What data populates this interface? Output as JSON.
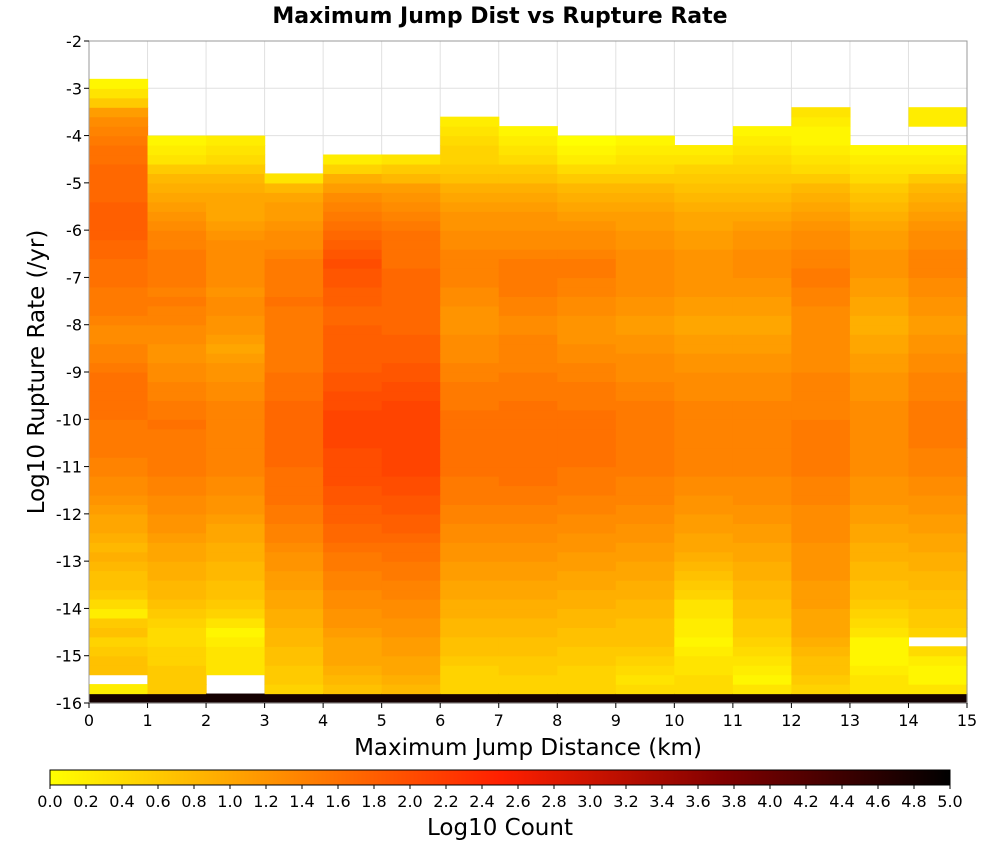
{
  "chart_data": {
    "type": "heatmap",
    "title": "Maximum Jump Dist vs Rupture Rate",
    "xlabel": "Maximum Jump Distance (km)",
    "ylabel": "Log10 Rupture Rate (/yr)",
    "colorbar_label": "Log10 Count",
    "xlim": [
      0,
      15
    ],
    "ylim": [
      -16,
      -2
    ],
    "clim": [
      0.0,
      5.0
    ],
    "x_ticks": [
      "0",
      "1",
      "2",
      "3",
      "4",
      "5",
      "6",
      "7",
      "8",
      "9",
      "10",
      "11",
      "12",
      "13",
      "14",
      "15"
    ],
    "y_ticks": [
      "-2",
      "-3",
      "-4",
      "-5",
      "-6",
      "-7",
      "-8",
      "-9",
      "-10",
      "-11",
      "-12",
      "-13",
      "-14",
      "-15",
      "-16"
    ],
    "colorbar_ticks": [
      "0.0",
      "0.2",
      "0.4",
      "0.6",
      "0.8",
      "1.0",
      "1.2",
      "1.4",
      "1.6",
      "1.8",
      "2.0",
      "2.2",
      "2.4",
      "2.6",
      "2.8",
      "3.0",
      "3.2",
      "3.4",
      "3.6",
      "3.8",
      "4.0",
      "4.2",
      "4.4",
      "4.6",
      "4.8",
      "5.0"
    ],
    "colorscale": [
      "#ffff00",
      "#ff9000",
      "#ff2000",
      "#800000",
      "#000000"
    ],
    "grid": true,
    "x_bin_edges": [
      0,
      1,
      2,
      3,
      4,
      5,
      6,
      7,
      8,
      9,
      10,
      11,
      12,
      13,
      14,
      15
    ],
    "y_bin_edges": [
      -16,
      -15.8,
      -15.6,
      -15.4,
      -15.2,
      -15,
      -14.8,
      -14.6,
      -14.4,
      -14.2,
      -14,
      -13.8,
      -13.6,
      -13.4,
      -13.2,
      -13,
      -12.8,
      -12.6,
      -12.4,
      -12.2,
      -12,
      -11.8,
      -11.6,
      -11.4,
      -11.2,
      -11,
      -10.8,
      -10.6,
      -10.4,
      -10.2,
      -10,
      -9.8,
      -9.6,
      -9.4,
      -9.2,
      -9,
      -8.8,
      -8.6,
      -8.4,
      -8.2,
      -8,
      -7.8,
      -7.6,
      -7.4,
      -7.2,
      -7,
      -6.8,
      -6.6,
      -6.4,
      -6.2,
      -6,
      -5.8,
      -5.6,
      -5.4,
      -5.2,
      -5,
      -4.8,
      -4.6,
      -4.4,
      -4.2,
      -4,
      -3.8,
      -3.6,
      -3.4,
      -3.2,
      -3,
      -2.8
    ],
    "columns": [
      [
        4.8,
        0.2,
        null,
        0.7,
        0.7,
        0.6,
        0.5,
        0.7,
        0.6,
        0.2,
        0.4,
        0.6,
        0.7,
        0.7,
        0.8,
        0.9,
        0.8,
        0.9,
        1.0,
        1.0,
        1.1,
        1.2,
        1.3,
        1.3,
        1.4,
        1.4,
        1.5,
        1.5,
        1.5,
        1.5,
        1.6,
        1.6,
        1.6,
        1.6,
        1.6,
        1.5,
        1.4,
        1.4,
        1.3,
        1.3,
        1.4,
        1.5,
        1.5,
        1.5,
        1.6,
        1.6,
        1.6,
        1.7,
        1.7,
        1.8,
        1.8,
        1.8,
        1.8,
        1.7,
        1.7,
        1.7,
        1.7,
        1.6,
        1.6,
        1.5,
        1.4,
        1.3,
        1.1,
        0.6,
        0.3,
        0.1
      ],
      [
        4.8,
        0.6,
        0.6,
        0.6,
        0.5,
        0.5,
        0.4,
        0.4,
        0.5,
        0.6,
        0.7,
        0.8,
        0.8,
        0.9,
        0.9,
        1.0,
        1.0,
        1.1,
        1.2,
        1.2,
        1.3,
        1.3,
        1.4,
        1.4,
        1.5,
        1.5,
        1.5,
        1.5,
        1.5,
        1.6,
        1.5,
        1.5,
        1.4,
        1.4,
        1.3,
        1.3,
        1.2,
        1.2,
        1.3,
        1.3,
        1.4,
        1.4,
        1.5,
        1.4,
        1.5,
        1.5,
        1.5,
        1.5,
        1.4,
        1.4,
        1.3,
        1.2,
        1.1,
        1.0,
        0.9,
        0.8,
        0.6,
        0.3,
        0.2,
        0.1,
        null,
        null,
        null,
        null,
        null,
        null
      ],
      [
        4.8,
        null,
        null,
        0.3,
        0.3,
        0.3,
        0.2,
        0.1,
        0.3,
        0.5,
        0.6,
        0.7,
        0.7,
        0.8,
        0.8,
        0.9,
        0.9,
        1.0,
        1.0,
        1.1,
        1.2,
        1.2,
        1.3,
        1.3,
        1.4,
        1.4,
        1.4,
        1.4,
        1.4,
        1.4,
        1.4,
        1.4,
        1.3,
        1.3,
        1.2,
        1.2,
        1.1,
        1.0,
        1.1,
        1.2,
        1.2,
        1.3,
        1.3,
        1.2,
        1.3,
        1.3,
        1.3,
        1.3,
        1.3,
        1.2,
        1.1,
        1.0,
        1.0,
        1.0,
        0.9,
        0.8,
        0.6,
        0.4,
        0.3,
        0.2,
        null,
        null,
        null,
        null,
        null,
        null
      ],
      [
        4.8,
        0.5,
        0.6,
        0.6,
        0.7,
        0.7,
        0.8,
        0.8,
        0.9,
        0.9,
        1.0,
        1.0,
        1.1,
        1.1,
        1.2,
        1.2,
        1.3,
        1.4,
        1.4,
        1.5,
        1.5,
        1.6,
        1.6,
        1.6,
        1.6,
        1.7,
        1.7,
        1.7,
        1.7,
        1.7,
        1.7,
        1.7,
        1.6,
        1.6,
        1.6,
        1.5,
        1.5,
        1.5,
        1.5,
        1.5,
        1.5,
        1.5,
        1.6,
        1.5,
        1.5,
        1.5,
        1.5,
        1.4,
        1.3,
        1.3,
        1.2,
        1.1,
        1.1,
        1.0,
        0.8,
        0.3,
        null,
        null,
        null,
        null,
        null,
        null,
        null,
        null,
        null,
        null
      ],
      [
        4.8,
        0.7,
        0.8,
        0.9,
        1.0,
        1.0,
        1.0,
        1.1,
        1.2,
        1.2,
        1.3,
        1.3,
        1.4,
        1.4,
        1.5,
        1.5,
        1.6,
        1.7,
        1.7,
        1.8,
        1.8,
        1.9,
        1.9,
        2.0,
        2.0,
        2.0,
        2.0,
        2.1,
        2.1,
        2.1,
        2.1,
        2.0,
        2.0,
        1.9,
        1.9,
        1.8,
        1.8,
        1.8,
        1.8,
        1.8,
        1.7,
        1.7,
        1.8,
        1.8,
        1.9,
        1.9,
        2.0,
        1.9,
        1.8,
        1.7,
        1.6,
        1.5,
        1.4,
        1.3,
        1.1,
        0.9,
        0.5,
        0.2,
        null,
        null,
        null,
        null,
        null,
        null,
        null,
        null
      ],
      [
        4.8,
        0.8,
        0.9,
        1.0,
        1.0,
        1.1,
        1.1,
        1.2,
        1.2,
        1.3,
        1.3,
        1.4,
        1.4,
        1.5,
        1.5,
        1.6,
        1.6,
        1.7,
        1.8,
        1.8,
        1.9,
        1.9,
        2.0,
        2.0,
        2.1,
        2.1,
        2.1,
        2.1,
        2.1,
        2.1,
        2.1,
        2.1,
        2.0,
        2.0,
        1.9,
        1.9,
        1.8,
        1.8,
        1.8,
        1.7,
        1.7,
        1.7,
        1.7,
        1.7,
        1.7,
        1.7,
        1.6,
        1.6,
        1.6,
        1.6,
        1.5,
        1.4,
        1.3,
        1.2,
        1.1,
        0.8,
        0.6,
        0.3,
        null,
        null,
        null,
        null,
        null,
        null,
        null,
        null
      ],
      [
        4.8,
        0.5,
        0.5,
        0.5,
        0.6,
        0.7,
        0.7,
        0.8,
        0.8,
        0.9,
        0.9,
        1.0,
        1.0,
        1.1,
        1.1,
        1.2,
        1.2,
        1.3,
        1.3,
        1.4,
        1.4,
        1.5,
        1.5,
        1.5,
        1.6,
        1.6,
        1.6,
        1.6,
        1.6,
        1.6,
        1.6,
        1.5,
        1.5,
        1.5,
        1.4,
        1.4,
        1.3,
        1.3,
        1.3,
        1.2,
        1.2,
        1.2,
        1.3,
        1.3,
        1.4,
        1.4,
        1.4,
        1.4,
        1.3,
        1.3,
        1.2,
        1.2,
        1.1,
        1.0,
        0.9,
        0.7,
        0.6,
        0.5,
        0.5,
        0.4,
        0.3,
        0.2,
        null,
        null,
        null,
        null
      ],
      [
        4.8,
        0.5,
        0.5,
        0.6,
        0.6,
        0.7,
        0.7,
        0.8,
        0.8,
        0.9,
        0.9,
        1.0,
        1.0,
        1.1,
        1.1,
        1.2,
        1.2,
        1.3,
        1.3,
        1.4,
        1.4,
        1.5,
        1.5,
        1.6,
        1.6,
        1.6,
        1.6,
        1.6,
        1.6,
        1.6,
        1.6,
        1.6,
        1.5,
        1.5,
        1.5,
        1.4,
        1.4,
        1.4,
        1.4,
        1.3,
        1.3,
        1.4,
        1.4,
        1.5,
        1.5,
        1.5,
        1.5,
        1.4,
        1.3,
        1.3,
        1.2,
        1.2,
        1.1,
        1.0,
        0.9,
        0.7,
        0.6,
        0.4,
        0.3,
        0.2,
        0.1,
        null,
        null,
        null,
        null,
        null
      ],
      [
        4.8,
        0.5,
        0.5,
        0.5,
        0.6,
        0.6,
        0.7,
        0.7,
        0.8,
        0.8,
        0.9,
        0.9,
        1.0,
        1.0,
        1.1,
        1.1,
        1.2,
        1.2,
        1.3,
        1.3,
        1.4,
        1.4,
        1.5,
        1.5,
        1.5,
        1.6,
        1.6,
        1.6,
        1.6,
        1.6,
        1.6,
        1.5,
        1.5,
        1.5,
        1.4,
        1.4,
        1.3,
        1.3,
        1.2,
        1.2,
        1.2,
        1.3,
        1.3,
        1.4,
        1.4,
        1.5,
        1.5,
        1.4,
        1.3,
        1.3,
        1.2,
        1.1,
        1.0,
        0.9,
        0.8,
        0.6,
        0.4,
        0.2,
        0.1,
        0.0,
        null,
        null,
        null,
        null,
        null,
        null
      ],
      [
        4.8,
        0.4,
        0.3,
        0.4,
        0.5,
        0.6,
        0.7,
        0.7,
        0.7,
        0.8,
        0.8,
        0.9,
        0.9,
        1.0,
        1.0,
        1.1,
        1.1,
        1.2,
        1.2,
        1.3,
        1.3,
        1.4,
        1.4,
        1.4,
        1.5,
        1.5,
        1.5,
        1.5,
        1.5,
        1.5,
        1.5,
        1.5,
        1.4,
        1.4,
        1.3,
        1.3,
        1.3,
        1.2,
        1.2,
        1.1,
        1.1,
        1.2,
        1.2,
        1.3,
        1.3,
        1.3,
        1.3,
        1.3,
        1.2,
        1.2,
        1.1,
        1.1,
        1.0,
        0.9,
        0.8,
        0.6,
        0.4,
        0.3,
        0.2,
        0.1,
        null,
        null,
        null,
        null,
        null,
        null
      ],
      [
        4.8,
        0.4,
        0.4,
        0.3,
        0.3,
        0.2,
        0.1,
        0.2,
        0.2,
        0.3,
        0.3,
        0.5,
        0.6,
        0.7,
        0.8,
        0.9,
        1.0,
        1.0,
        1.1,
        1.1,
        1.2,
        1.2,
        1.3,
        1.3,
        1.4,
        1.4,
        1.4,
        1.4,
        1.4,
        1.4,
        1.4,
        1.4,
        1.3,
        1.3,
        1.3,
        1.2,
        1.2,
        1.1,
        1.1,
        1.0,
        1.0,
        1.1,
        1.1,
        1.2,
        1.2,
        1.2,
        1.2,
        1.2,
        1.1,
        1.1,
        1.0,
        1.0,
        0.9,
        0.8,
        0.7,
        0.6,
        0.5,
        0.3,
        0.2,
        null,
        null,
        null,
        null,
        null,
        null,
        null
      ],
      [
        4.8,
        0.3,
        0.1,
        0.2,
        0.3,
        0.4,
        0.5,
        0.6,
        0.6,
        0.7,
        0.7,
        0.8,
        0.8,
        0.9,
        0.9,
        1.0,
        1.0,
        1.1,
        1.1,
        1.2,
        1.2,
        1.3,
        1.3,
        1.3,
        1.4,
        1.4,
        1.4,
        1.4,
        1.4,
        1.4,
        1.4,
        1.4,
        1.3,
        1.3,
        1.3,
        1.2,
        1.2,
        1.1,
        1.1,
        1.0,
        1.0,
        1.1,
        1.1,
        1.2,
        1.2,
        1.3,
        1.3,
        1.3,
        1.2,
        1.2,
        1.1,
        1.0,
        0.9,
        0.8,
        0.7,
        0.6,
        0.5,
        0.4,
        0.3,
        0.2,
        0.1,
        null,
        null,
        null,
        null,
        null
      ],
      [
        4.8,
        0.5,
        0.6,
        0.7,
        0.7,
        0.8,
        0.9,
        1.0,
        1.0,
        1.0,
        1.1,
        1.1,
        1.1,
        1.2,
        1.2,
        1.2,
        1.2,
        1.3,
        1.3,
        1.3,
        1.3,
        1.4,
        1.4,
        1.4,
        1.5,
        1.5,
        1.5,
        1.5,
        1.5,
        1.5,
        1.4,
        1.4,
        1.4,
        1.4,
        1.4,
        1.3,
        1.3,
        1.3,
        1.3,
        1.3,
        1.3,
        1.3,
        1.4,
        1.4,
        1.5,
        1.5,
        1.4,
        1.4,
        1.3,
        1.3,
        1.2,
        1.1,
        1.0,
        0.9,
        0.8,
        0.6,
        0.4,
        0.3,
        0.2,
        0.1,
        0.1,
        0.2,
        0.3,
        null,
        null,
        null
      ],
      [
        4.8,
        0.3,
        0.3,
        0.2,
        0.1,
        0.1,
        0.1,
        0.3,
        0.4,
        0.5,
        0.6,
        0.7,
        0.7,
        0.8,
        0.8,
        0.9,
        0.9,
        1.0,
        1.0,
        1.1,
        1.1,
        1.2,
        1.2,
        1.2,
        1.3,
        1.3,
        1.3,
        1.3,
        1.3,
        1.3,
        1.3,
        1.3,
        1.2,
        1.2,
        1.2,
        1.1,
        1.1,
        1.0,
        1.0,
        0.9,
        0.9,
        1.0,
        1.0,
        1.1,
        1.1,
        1.2,
        1.2,
        1.2,
        1.1,
        1.1,
        1.0,
        0.9,
        0.8,
        0.7,
        0.6,
        0.4,
        0.3,
        0.2,
        0.1,
        null,
        null,
        null,
        null,
        null,
        null,
        null
      ],
      [
        4.8,
        0.3,
        0.1,
        0.1,
        0.2,
        0.4,
        null,
        0.5,
        0.6,
        0.6,
        0.7,
        0.7,
        0.8,
        0.8,
        0.9,
        0.9,
        1.0,
        1.0,
        1.1,
        1.1,
        1.2,
        1.2,
        1.3,
        1.3,
        1.4,
        1.4,
        1.4,
        1.5,
        1.5,
        1.5,
        1.5,
        1.5,
        1.4,
        1.4,
        1.4,
        1.3,
        1.3,
        1.2,
        1.2,
        1.1,
        1.1,
        1.2,
        1.2,
        1.3,
        1.3,
        1.4,
        1.4,
        1.4,
        1.3,
        1.3,
        1.2,
        1.1,
        1.0,
        0.9,
        0.8,
        0.6,
        0.3,
        0.2,
        0.1,
        null,
        null,
        0.2,
        0.2,
        null,
        null,
        null
      ]
    ]
  }
}
